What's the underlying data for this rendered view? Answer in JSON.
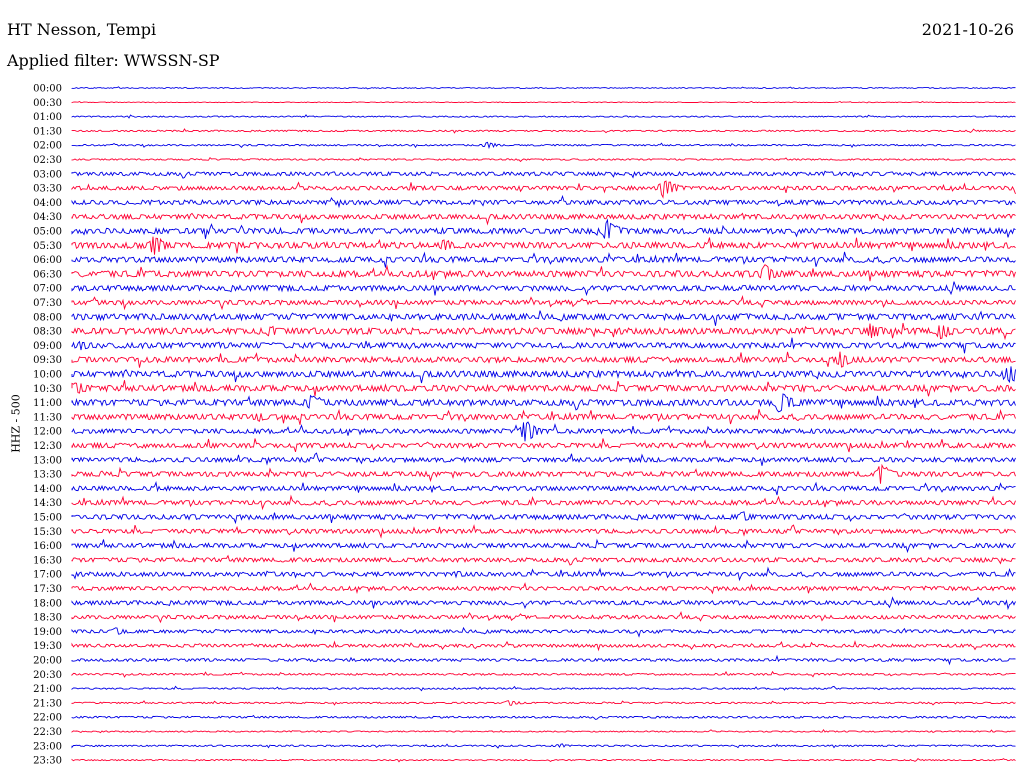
{
  "header": {
    "station": "HT Nesson, Tempi",
    "date": "2021-10-26",
    "filter": "Applied filter: WWSSN-SP",
    "channel_label": "HHZ - 500"
  },
  "colors": {
    "odd_trace": "#0000e6",
    "even_trace": "#ff0033"
  },
  "chart_data": {
    "type": "line",
    "title": "HT Nesson, Tempi",
    "subtitle": "Applied filter: WWSSN-SP",
    "ylabel": "HHZ - 500",
    "date": "2021-10-26",
    "trace_duration_minutes": 30,
    "row_labels": [
      "00:00",
      "00:30",
      "01:00",
      "01:30",
      "02:00",
      "02:30",
      "03:00",
      "03:30",
      "04:00",
      "04:30",
      "05:00",
      "05:30",
      "06:00",
      "06:30",
      "07:00",
      "07:30",
      "08:00",
      "08:30",
      "09:00",
      "09:30",
      "10:00",
      "10:30",
      "11:00",
      "11:30",
      "12:00",
      "12:30",
      "13:00",
      "13:30",
      "14:00",
      "14:30",
      "15:00",
      "15:30",
      "16:00",
      "16:30",
      "17:00",
      "17:30",
      "18:00",
      "18:30",
      "19:00",
      "19:30",
      "20:00",
      "20:30",
      "21:00",
      "21:30",
      "22:00",
      "22:30",
      "23:00",
      "23:30"
    ],
    "trace_colors": [
      "blue",
      "red"
    ],
    "noise_level": [
      0.3,
      0.2,
      0.4,
      0.5,
      0.5,
      0.5,
      1.2,
      1.3,
      1.5,
      1.6,
      1.8,
      2.0,
      1.8,
      2.0,
      1.8,
      1.5,
      2.0,
      2.0,
      1.8,
      1.8,
      2.0,
      2.0,
      2.0,
      1.8,
      1.5,
      1.6,
      1.5,
      1.6,
      1.5,
      1.5,
      1.6,
      1.4,
      1.5,
      1.4,
      1.4,
      1.3,
      1.4,
      1.2,
      1.1,
      1.0,
      0.9,
      0.6,
      0.5,
      0.5,
      0.6,
      0.4,
      0.5,
      0.4
    ],
    "events": [
      {
        "row": 4,
        "minute": 13.2,
        "amp": 3
      },
      {
        "row": 7,
        "minute": 18.8,
        "amp": 11
      },
      {
        "row": 10,
        "minute": 17.0,
        "amp": 12
      },
      {
        "row": 11,
        "minute": 2.6,
        "amp": 11
      },
      {
        "row": 11,
        "minute": 11.8,
        "amp": 7
      },
      {
        "row": 13,
        "minute": 22.0,
        "amp": 10
      },
      {
        "row": 17,
        "minute": 6.3,
        "amp": 6
      },
      {
        "row": 17,
        "minute": 25.4,
        "amp": 9
      },
      {
        "row": 17,
        "minute": 27.6,
        "amp": 10
      },
      {
        "row": 18,
        "minute": 0.3,
        "amp": 5
      },
      {
        "row": 19,
        "minute": 24.4,
        "amp": 9
      },
      {
        "row": 20,
        "minute": 29.8,
        "amp": 11
      },
      {
        "row": 21,
        "minute": 0.1,
        "amp": 8
      },
      {
        "row": 22,
        "minute": 7.6,
        "amp": 8
      },
      {
        "row": 22,
        "minute": 22.5,
        "amp": 12
      },
      {
        "row": 23,
        "minute": 5.9,
        "amp": 5
      },
      {
        "row": 24,
        "minute": 14.4,
        "amp": 12
      },
      {
        "row": 27,
        "minute": 25.7,
        "amp": 11
      },
      {
        "row": 30,
        "minute": 21.3,
        "amp": 6
      },
      {
        "row": 34,
        "minute": 12.2,
        "amp": 4
      },
      {
        "row": 38,
        "minute": 1.4,
        "amp": 4
      },
      {
        "row": 43,
        "minute": 13.9,
        "amp": 3
      },
      {
        "row": 46,
        "minute": 15.5,
        "amp": 2
      }
    ]
  }
}
